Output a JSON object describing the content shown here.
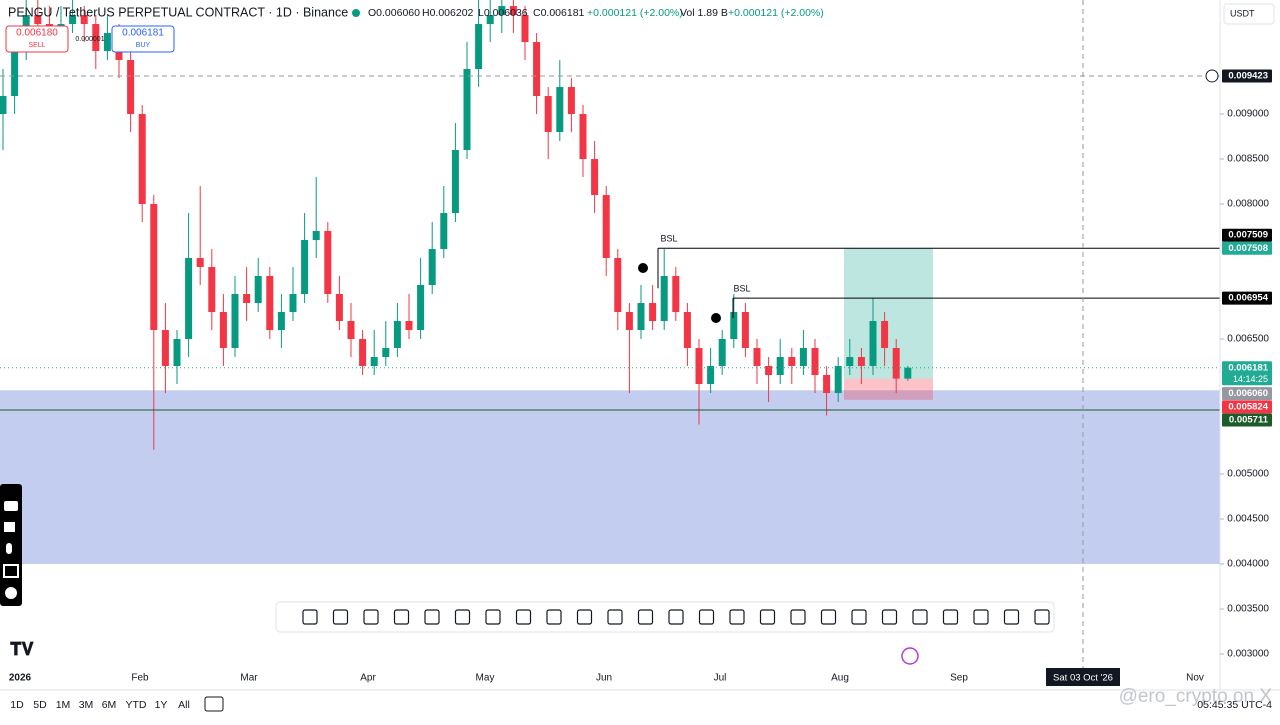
{
  "chart_data": {
    "type": "candlestick",
    "title": "PENGU / TetherUS PERPETUAL CONTRACT · 1D · Binance",
    "header": {
      "open": "O0.006060",
      "high": "H0.006202",
      "low": "L0.006036",
      "close": "C0.006181",
      "change": "+0.000121 (+2.00%)",
      "volume": "Vol 1.89 B",
      "volume_change": "+0.000121 (+2.00%)"
    },
    "sell": {
      "price": "0.006180",
      "label": "SELL"
    },
    "buy": {
      "price": "0.006181",
      "label": "BUY"
    },
    "spread": "0.000001",
    "currency": "USDT",
    "up_color": "#089981",
    "down_color": "#f23645",
    "ylim": [
      0.0026,
      0.010267
    ],
    "yticks": [
      {
        "value": 0.009,
        "label": "0.009000"
      },
      {
        "value": 0.0085,
        "label": "0.008500"
      },
      {
        "value": 0.008,
        "label": "0.008000"
      },
      {
        "value": 0.0065,
        "label": "0.006500"
      },
      {
        "value": 0.005,
        "label": "0.005000"
      },
      {
        "value": 0.0045,
        "label": "0.004500"
      },
      {
        "value": 0.004,
        "label": "0.004000"
      },
      {
        "value": 0.0035,
        "label": "0.003500"
      },
      {
        "value": 0.003,
        "label": "0.003000"
      }
    ],
    "ohlc": [
      [
        0.009,
        0.0095,
        0.0086,
        0.0092
      ],
      [
        0.0092,
        0.0099,
        0.009,
        0.0098
      ],
      [
        0.0098,
        0.0104,
        0.0096,
        0.0101
      ],
      [
        0.0101,
        0.0103,
        0.0098,
        0.01
      ],
      [
        0.01,
        0.0102,
        0.0097,
        0.0099
      ],
      [
        0.0099,
        0.0102,
        0.0098,
        0.01
      ],
      [
        0.01,
        0.0103,
        0.0099,
        0.0101
      ],
      [
        0.0101,
        0.0102,
        0.0098,
        0.01
      ],
      [
        0.01,
        0.0101,
        0.0095,
        0.0097
      ],
      [
        0.0097,
        0.0101,
        0.0096,
        0.0099
      ],
      [
        0.0099,
        0.01,
        0.0094,
        0.0096
      ],
      [
        0.0096,
        0.0097,
        0.0088,
        0.009
      ],
      [
        0.009,
        0.0091,
        0.0078,
        0.008
      ],
      [
        0.008,
        0.0081,
        0.00527,
        0.0066
      ],
      [
        0.0066,
        0.0069,
        0.0059,
        0.0062
      ],
      [
        0.0062,
        0.0066,
        0.006,
        0.0065
      ],
      [
        0.0065,
        0.0079,
        0.0063,
        0.0074
      ],
      [
        0.0074,
        0.0082,
        0.0071,
        0.0073
      ],
      [
        0.0073,
        0.0075,
        0.0066,
        0.0068
      ],
      [
        0.0068,
        0.007,
        0.0062,
        0.0064
      ],
      [
        0.0064,
        0.0072,
        0.0063,
        0.007
      ],
      [
        0.007,
        0.0073,
        0.0067,
        0.0069
      ],
      [
        0.0069,
        0.0074,
        0.0068,
        0.0072
      ],
      [
        0.0072,
        0.0073,
        0.0065,
        0.0066
      ],
      [
        0.0066,
        0.007,
        0.0064,
        0.0068
      ],
      [
        0.0068,
        0.0073,
        0.0067,
        0.007
      ],
      [
        0.007,
        0.0079,
        0.0069,
        0.0076
      ],
      [
        0.0076,
        0.0083,
        0.0074,
        0.0077
      ],
      [
        0.0077,
        0.0078,
        0.0069,
        0.007
      ],
      [
        0.007,
        0.0072,
        0.0066,
        0.0067
      ],
      [
        0.0067,
        0.0069,
        0.0063,
        0.0065
      ],
      [
        0.0065,
        0.0066,
        0.0061,
        0.0062
      ],
      [
        0.0062,
        0.0066,
        0.0061,
        0.0063
      ],
      [
        0.0063,
        0.0067,
        0.0062,
        0.0064
      ],
      [
        0.0064,
        0.0069,
        0.0063,
        0.0067
      ],
      [
        0.0067,
        0.007,
        0.0065,
        0.0066
      ],
      [
        0.0066,
        0.0074,
        0.0065,
        0.0071
      ],
      [
        0.0071,
        0.0078,
        0.007,
        0.0075
      ],
      [
        0.0075,
        0.0082,
        0.0074,
        0.0079
      ],
      [
        0.0079,
        0.0089,
        0.0078,
        0.0086
      ],
      [
        0.0086,
        0.0098,
        0.0085,
        0.0095
      ],
      [
        0.0095,
        0.0104,
        0.0093,
        0.01
      ],
      [
        0.01,
        0.0104,
        0.0098,
        0.0101
      ],
      [
        0.0101,
        0.0104,
        0.0099,
        0.0102
      ],
      [
        0.0102,
        0.0104,
        0.0099,
        0.0101
      ],
      [
        0.0101,
        0.0102,
        0.0096,
        0.0098
      ],
      [
        0.0098,
        0.0099,
        0.009,
        0.0092
      ],
      [
        0.0092,
        0.0093,
        0.0085,
        0.0088
      ],
      [
        0.0088,
        0.0096,
        0.0087,
        0.0093
      ],
      [
        0.0093,
        0.0094,
        0.0088,
        0.009
      ],
      [
        0.009,
        0.0091,
        0.0083,
        0.0085
      ],
      [
        0.0085,
        0.0087,
        0.0079,
        0.0081
      ],
      [
        0.0081,
        0.0082,
        0.0072,
        0.0074
      ],
      [
        0.0074,
        0.0075,
        0.0066,
        0.0068
      ],
      [
        0.0068,
        0.0069,
        0.0059,
        0.0066
      ],
      [
        0.0066,
        0.0071,
        0.0065,
        0.0069
      ],
      [
        0.0069,
        0.0071,
        0.0066,
        0.0067
      ],
      [
        0.0067,
        0.0075,
        0.0066,
        0.0072
      ],
      [
        0.0072,
        0.0073,
        0.0067,
        0.0068
      ],
      [
        0.0068,
        0.0069,
        0.0062,
        0.0064
      ],
      [
        0.0064,
        0.0065,
        0.00555,
        0.006
      ],
      [
        0.006,
        0.0064,
        0.0059,
        0.0062
      ],
      [
        0.0062,
        0.0066,
        0.0061,
        0.0065
      ],
      [
        0.0065,
        0.007,
        0.0064,
        0.0068
      ],
      [
        0.0068,
        0.0069,
        0.0063,
        0.0064
      ],
      [
        0.0064,
        0.0065,
        0.006,
        0.0062
      ],
      [
        0.0062,
        0.0063,
        0.0058,
        0.0061
      ],
      [
        0.0061,
        0.0065,
        0.006,
        0.0063
      ],
      [
        0.0063,
        0.0064,
        0.006,
        0.0062
      ],
      [
        0.0062,
        0.0066,
        0.0061,
        0.0064
      ],
      [
        0.0064,
        0.0065,
        0.0059,
        0.0061
      ],
      [
        0.0061,
        0.0062,
        0.00565,
        0.0059
      ],
      [
        0.0059,
        0.0063,
        0.0058,
        0.0062
      ],
      [
        0.0062,
        0.0065,
        0.0061,
        0.0063
      ],
      [
        0.0063,
        0.0064,
        0.006,
        0.0062
      ],
      [
        0.0062,
        0.00695,
        0.0061,
        0.0067
      ],
      [
        0.0067,
        0.0068,
        0.0062,
        0.0064
      ],
      [
        0.0064,
        0.0065,
        0.0059,
        0.00606
      ],
      [
        0.00606,
        0.006202,
        0.006036,
        0.006181
      ]
    ],
    "zones": [
      {
        "top": 0.00593,
        "bottom": 0.004,
        "color": "#c3cdf0"
      }
    ],
    "price_tags": [
      {
        "value": 0.009423,
        "label": "0.009423",
        "color": "#131722"
      },
      {
        "value": 0.007509,
        "label": "0.007509",
        "color": "#000000"
      },
      {
        "value": 0.007508,
        "label": "0.007508",
        "color": "#22ab94"
      },
      {
        "value": 0.006954,
        "label": "0.006954",
        "color": "#000000"
      },
      {
        "value": 0.006181,
        "label": "0.006181",
        "color": "#22ab94",
        "countdown": "14:14:25"
      },
      {
        "value": 0.00606,
        "label": "0.006060",
        "color": "#9598a1"
      },
      {
        "value": 0.005824,
        "label": "0.005824",
        "color": "#f23645"
      },
      {
        "value": 0.005711,
        "label": "0.005711",
        "color": "#1e5b2a"
      }
    ],
    "annotations": [
      {
        "text": "BSL"
      },
      {
        "text": "BSL"
      }
    ],
    "x_labels": [
      "2026",
      "Feb",
      "Mar",
      "Apr",
      "May",
      "Jun",
      "Jul",
      "Aug",
      "Sep",
      "Nov"
    ],
    "crosshair_date": "Sat 03 Oct '26",
    "ranges": [
      "1D",
      "5D",
      "1M",
      "3M",
      "6M",
      "YTD",
      "1Y",
      "All"
    ],
    "clock": "05:45:35 UTC-4",
    "watermark": "@ero_crypto on X"
  }
}
